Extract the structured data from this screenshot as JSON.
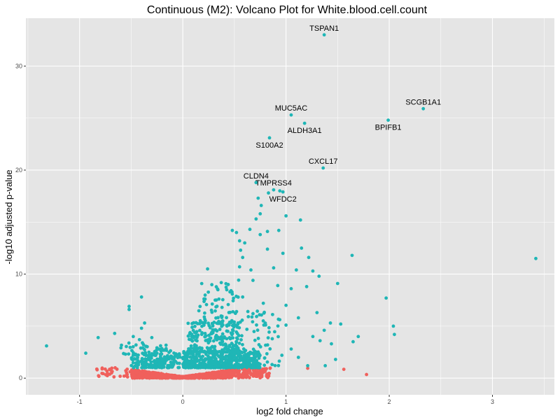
{
  "chart_data": {
    "type": "scatter",
    "title": "Continuous (M2): Volcano Plot for White.blood.cell.count",
    "xlabel": "log2 fold change",
    "ylabel": "-log10 adjusted p-value",
    "xlim": [
      -1.52,
      3.6
    ],
    "ylim": [
      -1.6,
      34.6
    ],
    "xticks": [
      -1,
      0,
      1,
      2,
      3
    ],
    "yticks": [
      0,
      10,
      20,
      30
    ],
    "grid": true,
    "legend": "none",
    "colors": {
      "panel": "#e5e5e5",
      "grid": "#ffffff",
      "significant": "#1fb6b6",
      "not_significant": "#f0605c"
    },
    "labeled_points": [
      {
        "gene": "TSPAN1",
        "x": 1.37,
        "y": 33.0,
        "label_pos": "above"
      },
      {
        "gene": "SCGB1A1",
        "x": 2.33,
        "y": 25.9,
        "label_pos": "above"
      },
      {
        "gene": "BPIFB1",
        "x": 1.99,
        "y": 24.8,
        "label_pos": "below"
      },
      {
        "gene": "MUC5AC",
        "x": 1.05,
        "y": 25.3,
        "label_pos": "above"
      },
      {
        "gene": "ALDH3A1",
        "x": 1.18,
        "y": 24.5,
        "label_pos": "below"
      },
      {
        "gene": "S100A2",
        "x": 0.84,
        "y": 23.1,
        "label_pos": "below"
      },
      {
        "gene": "CXCL17",
        "x": 1.36,
        "y": 20.2,
        "label_pos": "above"
      },
      {
        "gene": "CLDN4",
        "x": 0.71,
        "y": 18.8,
        "label_pos": "above"
      },
      {
        "gene": "TMPRSS4",
        "x": 0.88,
        "y": 18.1,
        "label_pos": "above"
      },
      {
        "gene": "WFDC2",
        "x": 0.97,
        "y": 17.9,
        "label_pos": "below"
      }
    ],
    "significant_points": [
      [
        3.42,
        11.5
      ],
      [
        -1.32,
        3.1
      ],
      [
        -0.94,
        2.4
      ],
      [
        -0.82,
        3.9
      ],
      [
        -0.66,
        4.3
      ],
      [
        -0.52,
        6.6
      ],
      [
        -0.52,
        6.9
      ],
      [
        -0.4,
        7.8
      ],
      [
        -0.37,
        5.3
      ],
      [
        -0.4,
        4.8
      ],
      [
        -0.48,
        4.0
      ],
      [
        -0.42,
        3.7
      ],
      [
        -0.3,
        3.9
      ],
      [
        -0.25,
        2.4
      ],
      [
        -0.18,
        2.7
      ],
      [
        -0.12,
        2.0
      ],
      [
        -0.07,
        1.6
      ],
      [
        0.24,
        10.5
      ],
      [
        0.48,
        14.2
      ],
      [
        0.52,
        14.0
      ],
      [
        0.55,
        13.2
      ],
      [
        0.6,
        13.0
      ],
      [
        0.65,
        14.3
      ],
      [
        0.71,
        15.3
      ],
      [
        0.75,
        15.8
      ],
      [
        0.82,
        14.1
      ],
      [
        0.93,
        14.2
      ],
      [
        0.73,
        17.3
      ],
      [
        0.76,
        16.6
      ],
      [
        0.83,
        17.8
      ],
      [
        0.94,
        18.0
      ],
      [
        1.0,
        15.6
      ],
      [
        1.14,
        15.2
      ],
      [
        0.56,
        12.3
      ],
      [
        0.58,
        11.6
      ],
      [
        0.75,
        13.8
      ],
      [
        0.82,
        12.4
      ],
      [
        0.97,
        12.0
      ],
      [
        1.15,
        12.5
      ],
      [
        1.22,
        11.6
      ],
      [
        0.55,
        10.7
      ],
      [
        0.66,
        10.4
      ],
      [
        0.88,
        10.6
      ],
      [
        1.1,
        10.4
      ],
      [
        1.26,
        10.3
      ],
      [
        1.64,
        11.8
      ],
      [
        1.5,
        9.1
      ],
      [
        1.32,
        9.8
      ],
      [
        0.68,
        9.4
      ],
      [
        0.92,
        8.9
      ],
      [
        1.05,
        8.6
      ],
      [
        1.2,
        8.8
      ],
      [
        1.97,
        7.7
      ],
      [
        0.44,
        9.0
      ],
      [
        0.34,
        8.5
      ],
      [
        0.35,
        7.6
      ],
      [
        0.58,
        7.8
      ],
      [
        0.78,
        7.2
      ],
      [
        1.0,
        7.0
      ],
      [
        1.3,
        6.3
      ],
      [
        0.38,
        6.8
      ],
      [
        0.68,
        6.2
      ],
      [
        1.12,
        5.8
      ],
      [
        1.43,
        5.3
      ],
      [
        2.04,
        5.0
      ],
      [
        1.53,
        5.2
      ],
      [
        1.37,
        4.6
      ],
      [
        2.05,
        4.2
      ],
      [
        1.7,
        4.0
      ],
      [
        1.65,
        3.5
      ],
      [
        1.0,
        5.1
      ],
      [
        1.26,
        4.0
      ],
      [
        1.33,
        3.6
      ],
      [
        1.44,
        3.3
      ],
      [
        1.48,
        1.8
      ],
      [
        1.38,
        1.2
      ],
      [
        1.21,
        1.2
      ],
      [
        1.12,
        2.0
      ],
      [
        0.96,
        2.2
      ],
      [
        1.05,
        2.8
      ]
    ],
    "dense_regions": [
      {
        "x": [
          0.0,
          0.75
        ],
        "y": [
          1.0,
          2.6
        ],
        "n": 520,
        "color": "significant"
      },
      {
        "x": [
          0.05,
          0.55
        ],
        "y": [
          2.5,
          5.5
        ],
        "n": 200,
        "color": "significant"
      },
      {
        "x": [
          0.15,
          0.55
        ],
        "y": [
          5.0,
          9.5
        ],
        "n": 70,
        "color": "significant"
      },
      {
        "x": [
          0.45,
          0.95
        ],
        "y": [
          1.2,
          6.5
        ],
        "n": 90,
        "color": "significant"
      },
      {
        "x": [
          -0.5,
          -0.02
        ],
        "y": [
          1.0,
          2.4
        ],
        "n": 170,
        "color": "significant"
      },
      {
        "x": [
          -0.62,
          -0.08
        ],
        "y": [
          2.3,
          3.4
        ],
        "n": 40,
        "color": "significant"
      },
      {
        "x": [
          -0.5,
          0.48
        ],
        "y": [
          0.0,
          1.0
        ],
        "n": 1000,
        "color": "not_significant"
      },
      {
        "x": [
          0.48,
          0.85
        ],
        "y": [
          0.0,
          1.0
        ],
        "n": 120,
        "color": "not_significant"
      },
      {
        "x": [
          -0.85,
          -0.5
        ],
        "y": [
          0.1,
          1.0
        ],
        "n": 30,
        "color": "not_significant"
      }
    ],
    "outlier_nonsig": [
      [
        -0.83,
        0.8
      ],
      [
        -0.73,
        0.45
      ],
      [
        -0.69,
        0.5
      ],
      [
        1.21,
        0.95
      ],
      [
        1.56,
        0.85
      ],
      [
        1.78,
        0.35
      ]
    ]
  }
}
